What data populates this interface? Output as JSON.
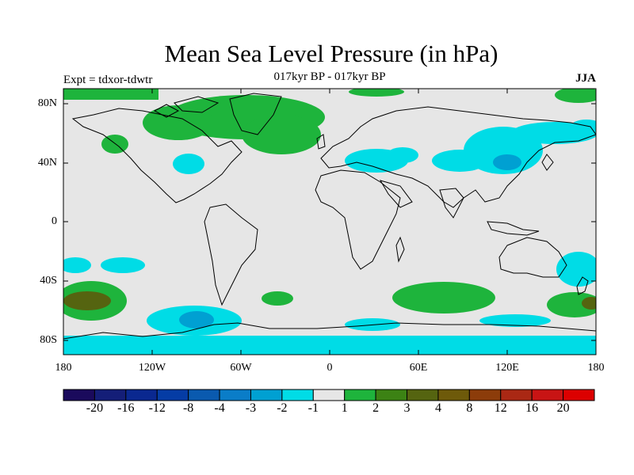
{
  "header": {
    "title": "Mean Sea Level Pressure (in hPa)",
    "subtitle": "017kyr BP - 017kyr BP",
    "left_label": "Expt = tdxor-tdwtr",
    "right_label": "JJA"
  },
  "map": {
    "lat_ticks": [
      "80N",
      "40N",
      "0",
      "40S",
      "80S"
    ],
    "lon_ticks": [
      "180",
      "120W",
      "60W",
      "0",
      "60E",
      "120E",
      "180"
    ],
    "background_color": "#e6e6e6"
  },
  "colorbar": {
    "colors": [
      "#1a0a5c",
      "#141e78",
      "#0a2890",
      "#053ca5",
      "#0a5aaf",
      "#0a7dc8",
      "#00a0d2",
      "#00dce6",
      "#e6e6e6",
      "#1eb43c",
      "#3c8214",
      "#556410",
      "#6e5a0a",
      "#8c3c0a",
      "#aa2814",
      "#c81414",
      "#dc0000"
    ],
    "labels": [
      "-20",
      "-16",
      "-12",
      "-8",
      "-4",
      "-3",
      "-2",
      "-1",
      "1",
      "2",
      "3",
      "4",
      "8",
      "12",
      "16",
      "20"
    ]
  }
}
